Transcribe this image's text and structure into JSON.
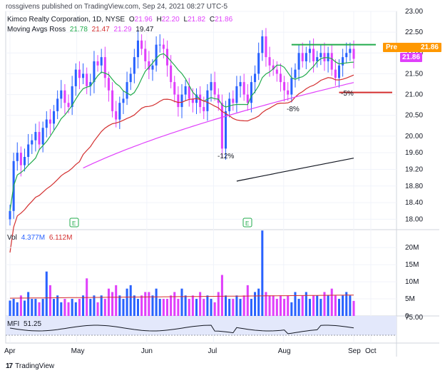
{
  "header": {
    "publisher": "rossgivens published on TradingView.com, Sep 24, 2021 08:27 UTC-5",
    "symbol_title": "Kimco Realty Corporation, 1D, NYSE",
    "ohlc": [
      {
        "label": "O",
        "value": "21.96"
      },
      {
        "label": "H",
        "value": "22.20"
      },
      {
        "label": "L",
        "value": "21.82"
      },
      {
        "label": "C",
        "value": "21.86"
      }
    ],
    "ma_title": "Moving Avgs Ross",
    "ma_values": [
      {
        "value": "21.78",
        "color": "#22ab4c"
      },
      {
        "value": "21.47",
        "color": "#d32f2f"
      },
      {
        "value": "21.29",
        "color": "#e040fb"
      },
      {
        "value": "19.47",
        "color": "#131722"
      }
    ],
    "vol_title": "Vol",
    "vol_values": [
      {
        "value": "4.377M",
        "color": "#2962ff"
      },
      {
        "value": "6.112M",
        "color": "#d32f2f"
      }
    ],
    "mfi_title": "MFI",
    "mfi_value": "51.25"
  },
  "price_tags": {
    "pre_label": "Pre",
    "pre_value": "21.86",
    "last_value": "21.86",
    "pre_color": "#ff9800",
    "last_color": "#e040fb"
  },
  "annotations": [
    "-12%",
    "-8%",
    "-5%"
  ],
  "earnings_marker": "E",
  "footer": {
    "logo": "17",
    "brand": "TradingView"
  },
  "colors": {
    "up": "#2962ff",
    "down": "#e040fb",
    "ma_fast": "#22ab4c",
    "ma_mid": "#d32f2f",
    "ma_slow": "#e040fb",
    "ma_long": "#131722",
    "resistance": "#22ab4c",
    "support": "#d32f2f",
    "mfi_band": "#e3e8fb"
  },
  "chart_data": [
    {
      "type": "candlestick",
      "title": "Kimco Realty Corporation, 1D, NYSE",
      "x_ticks": [
        "Apr",
        "May",
        "Jun",
        "Jul",
        "Aug",
        "Sep",
        "Oct"
      ],
      "y_ticks": [
        "18.00",
        "18.40",
        "18.80",
        "19.20",
        "19.60",
        "20.00",
        "20.50",
        "21.00",
        "21.50",
        "22.00",
        "22.50",
        "23.00"
      ],
      "ylim": [
        17.75,
        23.0
      ],
      "candles_close": [
        18.2,
        19.4,
        19.6,
        19.3,
        19.5,
        19.8,
        19.9,
        20.1,
        19.8,
        20.2,
        20.4,
        20.3,
        20.6,
        20.9,
        21.1,
        20.8,
        20.7,
        21.2,
        21.6,
        21.4,
        21.5,
        21.2,
        21.3,
        21.8,
        21.7,
        21.9,
        21.4,
        21.1,
        20.6,
        20.4,
        20.8,
        20.9,
        21.3,
        21.5,
        21.9,
        22.3,
        22.1,
        21.8,
        21.6,
        21.7,
        22.2,
        22.2,
        22.1,
        21.7,
        21.3,
        21.0,
        20.7,
        21.0,
        21.2,
        20.9,
        20.8,
        21.0,
        20.7,
        20.6,
        21.1,
        21.3,
        21.0,
        20.8,
        19.7,
        20.6,
        20.9,
        20.8,
        21.2,
        21.3,
        21.0,
        20.8,
        21.3,
        21.5,
        22.0,
        22.4,
        21.9,
        21.7,
        21.6,
        21.5,
        21.3,
        21.1,
        21.0,
        21.4,
        21.6,
        22.0,
        21.8,
        22.0,
        22.1,
        21.8,
        21.9,
        22.0,
        21.8,
        22.0,
        21.6,
        21.4,
        21.7,
        21.9,
        22.0,
        22.1,
        21.86
      ],
      "ma_fast_end": 21.78,
      "ma_mid_end": 21.47,
      "ma_slow_end": 21.29,
      "ma_long_end": 19.47,
      "resistance_level": 22.2,
      "support_level": 21.05,
      "grid": true,
      "annotations": [
        {
          "text": "-12%",
          "near": "Jul"
        },
        {
          "text": "-8%",
          "near": "Aug"
        },
        {
          "text": "-5%",
          "near": "Sep"
        }
      ]
    },
    {
      "type": "bar",
      "title": "Vol",
      "y_ticks": [
        "0",
        "5M",
        "10M",
        "15M",
        "20M"
      ],
      "ylim": [
        0,
        24
      ],
      "volume_millions": [
        4.5,
        5,
        4,
        6,
        4.5,
        7,
        5,
        5,
        4,
        5,
        13,
        9,
        5,
        6,
        4,
        5,
        4,
        5,
        4,
        5,
        6,
        11,
        5,
        6,
        4,
        6,
        5,
        8,
        7,
        9,
        6,
        5,
        8,
        9,
        6,
        5,
        6,
        7,
        7,
        6,
        8,
        5,
        5,
        5,
        6,
        7,
        5,
        8,
        6,
        5,
        6,
        5,
        7,
        5,
        6,
        5,
        4,
        7,
        12,
        6,
        5,
        5,
        6,
        5,
        6,
        9,
        5,
        7,
        8,
        25,
        7,
        6,
        6,
        5,
        6,
        5,
        6,
        4,
        7,
        5,
        6,
        7,
        5,
        6,
        6,
        5,
        7,
        6,
        8,
        6,
        5,
        6,
        7,
        6,
        4.4
      ],
      "avg_end": 6.112
    },
    {
      "type": "line",
      "title": "MFI",
      "y_ticks": [
        "75.00"
      ],
      "value_end": 51.25
    }
  ]
}
